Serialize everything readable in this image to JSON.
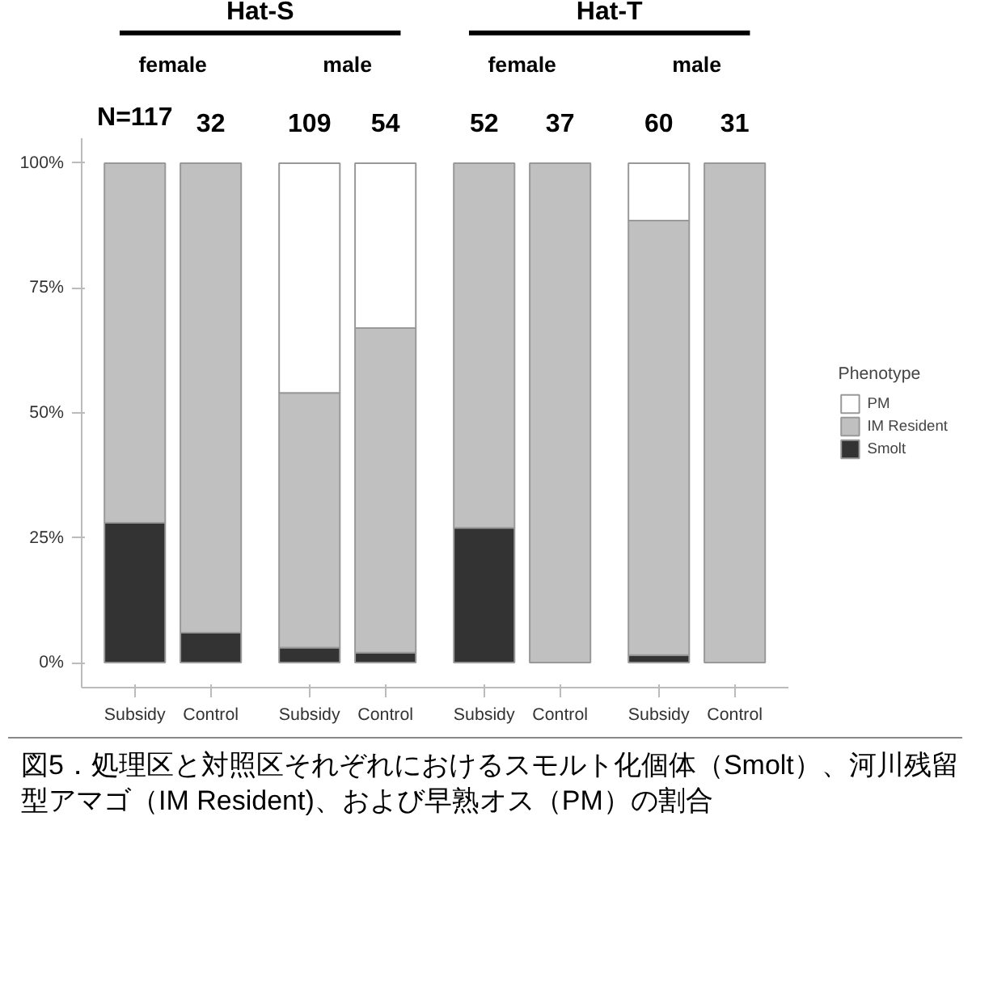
{
  "chart_data": {
    "type": "bar",
    "stacked": true,
    "categories": [
      "Subsidy",
      "Control",
      "Subsidy",
      "Control",
      "Subsidy",
      "Control",
      "Subsidy",
      "Control"
    ],
    "series": [
      {
        "name": "Smolt",
        "color": "#333333",
        "values": [
          28,
          6,
          3,
          2,
          27,
          0,
          1.5,
          0
        ]
      },
      {
        "name": "IM Resident",
        "color": "#c0c0c0",
        "values": [
          72,
          94,
          51,
          65,
          73,
          100,
          87,
          100
        ]
      },
      {
        "name": "PM",
        "color": "#ffffff",
        "values": [
          0,
          0,
          46,
          33,
          0,
          0,
          11.5,
          0
        ]
      }
    ],
    "ylim": [
      -5,
      105
    ],
    "yticks": [
      {
        "value": 0,
        "label": "0%"
      },
      {
        "value": 25,
        "label": "25%"
      },
      {
        "value": 50,
        "label": "50%"
      },
      {
        "value": 75,
        "label": "75%"
      },
      {
        "value": 100,
        "label": "100%"
      }
    ],
    "legend": "right",
    "legend_title": "Phenotype",
    "grid": false,
    "annotations": [
      "Hat-S",
      "Hat-T",
      "female",
      "male",
      "female",
      "male",
      "N=117",
      "32",
      "109",
      "54",
      "52",
      "37",
      "60",
      "31",
      "図5．処理区と対照区それぞれにおけるスモルト化個体（Smolt）、河川残留型アマゴ（IM Resident)、および早熟オス（PM）の割合"
    ]
  }
}
